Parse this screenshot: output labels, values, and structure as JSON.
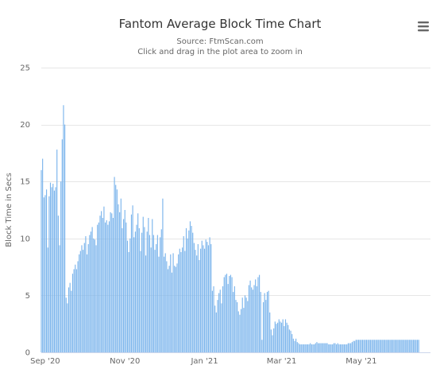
{
  "chart_data": {
    "type": "bar",
    "title": "Fantom Average Block Time Chart",
    "subtitle": "Source: FtmScan.com",
    "subtitle2": "Click and drag in the plot area to zoom in",
    "ylabel": "Block Time in Secs",
    "xlabel": "",
    "ylim": [
      0,
      25
    ],
    "yticks": [
      0,
      5,
      10,
      15,
      20,
      25
    ],
    "xlim": [
      "2020-08-29",
      "2021-06-23"
    ],
    "xticks": [
      {
        "label": "Sep '20",
        "date": "2020-09-01"
      },
      {
        "label": "Nov '20",
        "date": "2020-11-01"
      },
      {
        "label": "Jan '21",
        "date": "2021-01-01"
      },
      {
        "label": "Mar '21",
        "date": "2021-03-01"
      },
      {
        "label": "May '21",
        "date": "2021-05-01"
      }
    ],
    "color": "#7cb5ec",
    "grid": true,
    "legend": "none",
    "series": [
      {
        "start": "2020-08-29",
        "interval_days": 1,
        "values": [
          16.0,
          17.0,
          13.6,
          13.8,
          14.3,
          9.2,
          13.7,
          14.9,
          14.5,
          14.8,
          14.2,
          14.5,
          17.8,
          12.0,
          9.4,
          15.0,
          18.7,
          21.7,
          20.0,
          4.8,
          4.3,
          5.7,
          6.1,
          5.4,
          6.9,
          7.3,
          7.7,
          7.3,
          8.0,
          8.6,
          8.9,
          9.4,
          9.0,
          9.6,
          10.2,
          8.6,
          9.5,
          10.3,
          10.6,
          11.0,
          10.0,
          9.9,
          9.4,
          11.2,
          11.4,
          12.0,
          12.4,
          11.8,
          12.8,
          11.4,
          11.6,
          11.2,
          11.5,
          12.3,
          12.2,
          11.8,
          15.4,
          14.7,
          14.3,
          13.0,
          12.3,
          13.5,
          10.9,
          11.7,
          12.5,
          11.4,
          9.8,
          8.8,
          10.0,
          12.1,
          12.9,
          10.1,
          10.6,
          11.2,
          12.2,
          10.9,
          8.9,
          10.5,
          11.9,
          11.0,
          8.5,
          10.6,
          11.8,
          10.3,
          9.2,
          11.7,
          10.3,
          9.0,
          9.5,
          10.3,
          8.4,
          10.1,
          10.8,
          13.5,
          8.4,
          8.7,
          8.0,
          7.3,
          7.6,
          8.6,
          7.0,
          8.7,
          7.6,
          7.5,
          7.8,
          8.6,
          9.1,
          8.8,
          9.2,
          10.2,
          8.9,
          10.9,
          10.0,
          10.7,
          11.5,
          11.1,
          10.5,
          9.6,
          9.0,
          8.5,
          9.5,
          8.1,
          9.1,
          9.8,
          9.4,
          9.1,
          9.9,
          9.7,
          9.4,
          10.1,
          9.5,
          5.4,
          5.8,
          4.1,
          3.5,
          4.6,
          5.2,
          5.5,
          4.3,
          5.8,
          6.6,
          6.8,
          6.9,
          6.0,
          6.7,
          6.8,
          6.6,
          5.3,
          5.8,
          4.6,
          4.4,
          3.6,
          3.3,
          3.8,
          4.8,
          3.9,
          5.0,
          4.8,
          4.5,
          5.9,
          6.3,
          5.7,
          5.5,
          5.9,
          6.4,
          5.8,
          6.6,
          6.8,
          5.3,
          1.1,
          4.4,
          5.2,
          4.6,
          5.3,
          5.4,
          3.5,
          2.0,
          1.5,
          2.1,
          2.7,
          2.5,
          2.6,
          2.9,
          2.7,
          2.6,
          2.9,
          2.3,
          2.9,
          2.6,
          2.4,
          2.0,
          1.9,
          1.6,
          1.2,
          1.0,
          1.2,
          0.9,
          0.8,
          0.7,
          0.7,
          0.7,
          0.7,
          0.7,
          0.7,
          0.7,
          0.7,
          0.8,
          0.7,
          0.7,
          0.7,
          0.8,
          0.9,
          0.8,
          0.8,
          0.8,
          0.8,
          0.8,
          0.8,
          0.8,
          0.8,
          0.7,
          0.7,
          0.7,
          0.7,
          0.8,
          0.8,
          0.7,
          0.8,
          0.7,
          0.7,
          0.7,
          0.7,
          0.7,
          0.7,
          0.7,
          0.8,
          0.8,
          0.8,
          0.9,
          1.0,
          1.0,
          1.1,
          1.1,
          1.1,
          1.1,
          1.1,
          1.1,
          1.1,
          1.1,
          1.1,
          1.1,
          1.1,
          1.1,
          1.1,
          1.1,
          1.1,
          1.1,
          1.1,
          1.1,
          1.1,
          1.1,
          1.1,
          1.1,
          1.1,
          1.1,
          1.1,
          1.1,
          1.1,
          1.1,
          1.1,
          1.1,
          1.1,
          1.1,
          1.1,
          1.1,
          1.1,
          1.1,
          1.1,
          1.1,
          1.1,
          1.1,
          1.1,
          1.1,
          1.1,
          1.1,
          1.1,
          1.1,
          1.1,
          1.1,
          1.1
        ]
      }
    ]
  },
  "menu": {
    "icon": "hamburger-menu-icon"
  }
}
